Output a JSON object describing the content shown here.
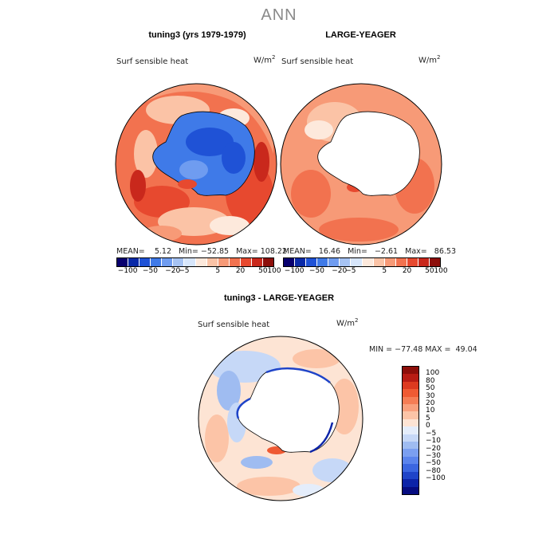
{
  "main_title": "ANN",
  "panels": {
    "left": {
      "title": "tuning3 (yrs 1979-1979)",
      "variable": "Surf sensible heat",
      "units": "W/m",
      "units_exp": "2",
      "stats": "MEAN=    5.12   Min= −52.85   Max= 108.22"
    },
    "right": {
      "title": "LARGE-YEAGER",
      "variable": "Surf sensible heat",
      "units": "W/m",
      "units_exp": "2",
      "stats": "MEAN=   16.46   Min=   −2.61   Max=   86.53"
    },
    "diff": {
      "title": "tuning3 - LARGE-YEAGER",
      "variable": "Surf sensible heat",
      "units": "W/m",
      "units_exp": "2",
      "stats": "MIN = −77.48 MAX =  49.04"
    }
  },
  "colorbar_top": {
    "colors": [
      "#08006e",
      "#0a2aa8",
      "#1f52d6",
      "#3f7ae8",
      "#6f9cf0",
      "#a6c3f3",
      "#d7e6fb",
      "#fde9dc",
      "#fbc3a6",
      "#f79a77",
      "#f2724f",
      "#e7492f",
      "#c9281c",
      "#8d0e0a"
    ],
    "tick_labels": [
      "−100",
      "−50",
      "−20",
      "−5",
      "5",
      "20",
      "50",
      "100"
    ]
  },
  "colorbar_diff": {
    "colors": [
      "#8d0e0a",
      "#b81c14",
      "#dd3a20",
      "#ef5a33",
      "#f57d55",
      "#f9a07d",
      "#fcc4a7",
      "#fde4d4",
      "#e4edfb",
      "#c6d8f7",
      "#9fbcf1",
      "#7b9ff0",
      "#5b84ec",
      "#3b66e0",
      "#1f44c8",
      "#0c24a8",
      "#060c80"
    ],
    "tick_labels": [
      "100",
      "80",
      "50",
      "30",
      "20",
      "10",
      "5",
      "0",
      "−5",
      "−10",
      "−20",
      "−30",
      "−50",
      "−80",
      "−100"
    ]
  },
  "legend": {
    "top_range": "−100 to 100 W/m2",
    "diff_range": "−100 to 100 W/m2"
  }
}
